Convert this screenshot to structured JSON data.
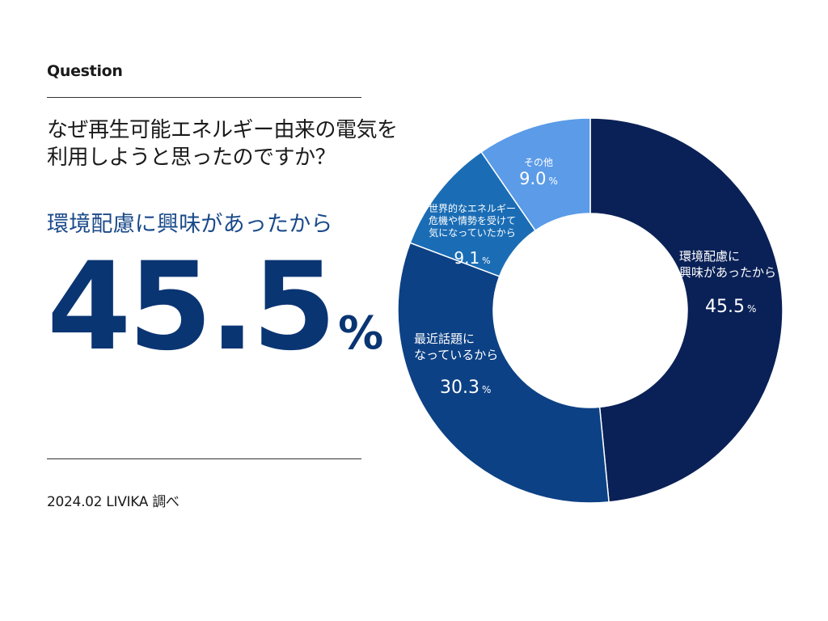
{
  "header": {
    "label": "Question"
  },
  "question": {
    "line1": "なぜ再生可能エネルギー由来の電気を",
    "line2": "利用しようと思ったのですか？"
  },
  "highlight": {
    "answer": "環境配慮に興味があったから",
    "value": "45.5",
    "unit": "%"
  },
  "footer": {
    "source": "2024.02 LIVIKA 調べ"
  },
  "chart_data": {
    "type": "pie",
    "donut": true,
    "start": "12 o'clock, clockwise",
    "slices": [
      {
        "label_lines": [
          "環境配慮に",
          "興味があったから"
        ],
        "value": 45.5,
        "value_text": "45.5",
        "unit": "%",
        "color": "#0a2157"
      },
      {
        "label_lines": [
          "最近話題に",
          "なっているから"
        ],
        "value": 30.3,
        "value_text": "30.3",
        "unit": "%",
        "color": "#0d4185"
      },
      {
        "label_lines": [
          "世界的なエネルギー",
          "危機や情勢を受けて",
          "気になっていたから"
        ],
        "value": 9.1,
        "value_text": "9.1",
        "unit": "%",
        "color": "#1a6db5"
      },
      {
        "label_lines": [
          "その他"
        ],
        "value": 9.0,
        "value_text": "9.0",
        "unit": "%",
        "color": "#5b9be8"
      }
    ]
  }
}
